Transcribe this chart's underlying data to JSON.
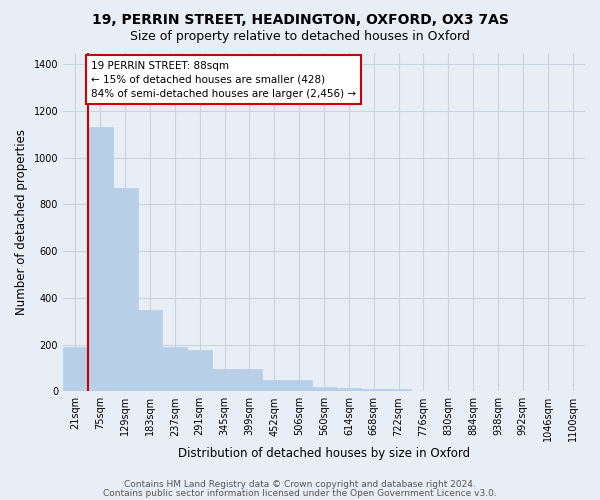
{
  "title1": "19, PERRIN STREET, HEADINGTON, OXFORD, OX3 7AS",
  "title2": "Size of property relative to detached houses in Oxford",
  "xlabel": "Distribution of detached houses by size in Oxford",
  "ylabel": "Number of detached properties",
  "categories": [
    "21sqm",
    "75sqm",
    "129sqm",
    "183sqm",
    "237sqm",
    "291sqm",
    "345sqm",
    "399sqm",
    "452sqm",
    "506sqm",
    "560sqm",
    "614sqm",
    "668sqm",
    "722sqm",
    "776sqm",
    "830sqm",
    "884sqm",
    "938sqm",
    "992sqm",
    "1046sqm",
    "1100sqm"
  ],
  "values": [
    190,
    1130,
    870,
    350,
    190,
    175,
    95,
    95,
    50,
    50,
    20,
    15,
    12,
    8,
    0,
    0,
    0,
    0,
    0,
    0,
    0
  ],
  "bar_color": "#b8cfe8",
  "bar_edge_color": "#b8cfe8",
  "vline_color": "#cc0000",
  "vline_x": 0.5,
  "annotation_text": "19 PERRIN STREET: 88sqm\n← 15% of detached houses are smaller (428)\n84% of semi-detached houses are larger (2,456) →",
  "ylim": [
    0,
    1450
  ],
  "yticks": [
    0,
    200,
    400,
    600,
    800,
    1000,
    1200,
    1400
  ],
  "bg_color": "#e8eef5",
  "grid_color": "#c8d4e0",
  "footer1": "Contains HM Land Registry data © Crown copyright and database right 2024.",
  "footer2": "Contains public sector information licensed under the Open Government Licence v3.0.",
  "title1_fontsize": 10,
  "title2_fontsize": 9,
  "xlabel_fontsize": 8.5,
  "ylabel_fontsize": 8.5,
  "tick_fontsize": 7,
  "footer_fontsize": 6.5,
  "annot_fontsize": 7.5
}
